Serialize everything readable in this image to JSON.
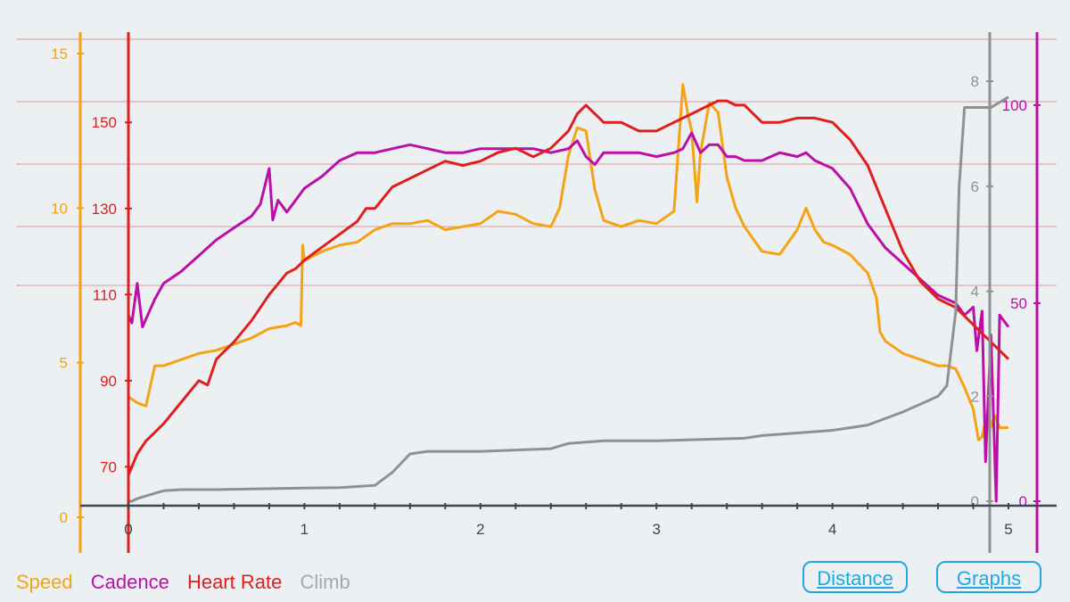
{
  "chart_data": {
    "type": "line",
    "x_axis": {
      "label": "",
      "min": 0,
      "max": 5,
      "ticks": [
        "0",
        "1",
        "2",
        "3",
        "4",
        "5"
      ]
    },
    "axes": {
      "speed": {
        "side": "left",
        "min": 0,
        "max": 15,
        "ticks": [
          "0",
          "5",
          "10",
          "15"
        ],
        "tick_values": [
          0,
          5,
          10,
          15
        ]
      },
      "heart_rate": {
        "side": "left",
        "min": 62,
        "max": 166,
        "ticks": [
          "70",
          "90",
          "110",
          "130",
          "150"
        ],
        "tick_values": [
          70,
          90,
          110,
          130,
          150
        ]
      },
      "climb": {
        "side": "right",
        "min": 0,
        "max": 8.8,
        "ticks": [
          "0",
          "2",
          "4",
          "6",
          "8"
        ],
        "tick_values": [
          0,
          2,
          4,
          6,
          8
        ]
      },
      "cadence": {
        "side": "right",
        "min": 0,
        "max": 111,
        "ticks": [
          "0",
          "50",
          "100"
        ],
        "tick_values": [
          0,
          50,
          100
        ]
      }
    },
    "grid": {
      "horizontal": true,
      "color": "#d99a96"
    },
    "legend_placement": "bottom-left",
    "series": [
      {
        "name": "Speed",
        "axis": "speed",
        "color": "#f5a316",
        "x": [
          0,
          0.05,
          0.1,
          0.15,
          0.2,
          0.3,
          0.4,
          0.5,
          0.6,
          0.7,
          0.8,
          0.9,
          0.95,
          0.98,
          0.99,
          1.0,
          1.1,
          1.2,
          1.3,
          1.4,
          1.5,
          1.6,
          1.7,
          1.8,
          1.9,
          2.0,
          2.1,
          2.2,
          2.3,
          2.4,
          2.45,
          2.5,
          2.55,
          2.6,
          2.65,
          2.7,
          2.8,
          2.9,
          3.0,
          3.1,
          3.15,
          3.18,
          3.2,
          3.23,
          3.25,
          3.3,
          3.35,
          3.4,
          3.45,
          3.5,
          3.6,
          3.7,
          3.8,
          3.85,
          3.9,
          3.95,
          4.0,
          4.1,
          4.2,
          4.25,
          4.27,
          4.3,
          4.4,
          4.5,
          4.6,
          4.65,
          4.7,
          4.75,
          4.8,
          4.83,
          4.85,
          4.88,
          4.9,
          4.92,
          4.95,
          5.0
        ],
        "values": [
          3.9,
          3.7,
          3.6,
          4.9,
          4.9,
          5.1,
          5.3,
          5.4,
          5.6,
          5.8,
          6.1,
          6.2,
          6.3,
          6.2,
          8.8,
          8.3,
          8.6,
          8.8,
          8.9,
          9.3,
          9.5,
          9.5,
          9.6,
          9.3,
          9.4,
          9.5,
          9.9,
          9.8,
          9.5,
          9.4,
          10.0,
          11.7,
          12.6,
          12.5,
          10.6,
          9.6,
          9.4,
          9.6,
          9.5,
          9.9,
          14.0,
          13.0,
          12.5,
          10.2,
          11.8,
          13.4,
          13.1,
          11.0,
          10.0,
          9.4,
          8.6,
          8.5,
          9.3,
          10.0,
          9.3,
          8.9,
          8.8,
          8.5,
          7.9,
          7.1,
          6.0,
          5.7,
          5.3,
          5.1,
          4.9,
          4.9,
          4.8,
          4.2,
          3.5,
          2.5,
          2.6,
          3.4,
          2.9,
          3.3,
          2.9,
          2.9
        ]
      },
      {
        "name": "Cadence",
        "axis": "cadence",
        "color": "#bb0fa8",
        "x": [
          0,
          0.02,
          0.05,
          0.08,
          0.1,
          0.15,
          0.2,
          0.3,
          0.4,
          0.5,
          0.6,
          0.7,
          0.75,
          0.8,
          0.82,
          0.85,
          0.9,
          1.0,
          1.1,
          1.2,
          1.3,
          1.4,
          1.5,
          1.6,
          1.7,
          1.8,
          1.9,
          2.0,
          2.1,
          2.2,
          2.3,
          2.4,
          2.5,
          2.55,
          2.6,
          2.65,
          2.7,
          2.8,
          2.9,
          3.0,
          3.1,
          3.15,
          3.2,
          3.25,
          3.3,
          3.35,
          3.4,
          3.45,
          3.5,
          3.6,
          3.7,
          3.8,
          3.85,
          3.9,
          4.0,
          4.1,
          4.2,
          4.3,
          4.4,
          4.5,
          4.6,
          4.7,
          4.75,
          4.8,
          4.82,
          4.85,
          4.87,
          4.9,
          4.93,
          4.95,
          5.0
        ],
        "values": [
          47,
          45,
          55,
          44,
          46,
          51,
          55,
          58,
          62,
          66,
          69,
          72,
          75,
          84,
          71,
          76,
          73,
          79,
          82,
          86,
          88,
          88,
          89,
          90,
          89,
          88,
          88,
          89,
          89,
          89,
          89,
          88,
          89,
          91,
          87,
          85,
          88,
          88,
          88,
          87,
          88,
          89,
          93,
          88,
          90,
          90,
          87,
          87,
          86,
          86,
          88,
          87,
          88,
          86,
          84,
          79,
          70,
          64,
          60,
          56,
          52,
          50,
          47,
          49,
          38,
          48,
          10,
          42,
          0,
          47,
          44
        ]
      },
      {
        "name": "Heart Rate",
        "axis": "heart_rate",
        "color": "#e01e1e",
        "x": [
          0,
          0.02,
          0.05,
          0.1,
          0.15,
          0.2,
          0.3,
          0.4,
          0.45,
          0.5,
          0.6,
          0.7,
          0.8,
          0.9,
          0.95,
          1.0,
          1.1,
          1.2,
          1.3,
          1.35,
          1.4,
          1.5,
          1.6,
          1.7,
          1.8,
          1.9,
          2.0,
          2.1,
          2.2,
          2.3,
          2.4,
          2.5,
          2.55,
          2.6,
          2.65,
          2.7,
          2.8,
          2.9,
          3.0,
          3.1,
          3.2,
          3.3,
          3.35,
          3.4,
          3.45,
          3.5,
          3.6,
          3.7,
          3.8,
          3.9,
          4.0,
          4.1,
          4.2,
          4.3,
          4.4,
          4.5,
          4.6,
          4.7,
          4.75,
          4.8,
          4.85,
          4.9,
          4.95,
          5.0
        ],
        "values": [
          68,
          70,
          73,
          76,
          78,
          80,
          85,
          90,
          89,
          95,
          99,
          104,
          110,
          115,
          116,
          118,
          121,
          124,
          127,
          130,
          130,
          135,
          137,
          139,
          141,
          140,
          141,
          143,
          144,
          142,
          144,
          148,
          152,
          154,
          152,
          150,
          150,
          148,
          148,
          150,
          152,
          154,
          155,
          155,
          154,
          154,
          150,
          150,
          151,
          151,
          150,
          146,
          140,
          130,
          120,
          113,
          109,
          107,
          105,
          103,
          101,
          99,
          97,
          95
        ]
      },
      {
        "name": "Climb",
        "axis": "climb",
        "color": "#919191",
        "x": [
          0,
          0.02,
          0.05,
          0.1,
          0.15,
          0.2,
          0.3,
          0.5,
          1.0,
          1.2,
          1.3,
          1.4,
          1.5,
          1.6,
          1.7,
          2.0,
          2.4,
          2.5,
          2.7,
          3.0,
          3.5,
          3.6,
          3.8,
          4.0,
          4.2,
          4.4,
          4.5,
          4.6,
          4.65,
          4.7,
          4.72,
          4.75,
          4.9,
          5.0
        ],
        "values": [
          0,
          0,
          0.05,
          0.1,
          0.15,
          0.2,
          0.22,
          0.22,
          0.25,
          0.26,
          0.28,
          0.3,
          0.55,
          0.9,
          0.95,
          0.95,
          1.0,
          1.1,
          1.15,
          1.15,
          1.2,
          1.25,
          1.3,
          1.35,
          1.45,
          1.7,
          1.85,
          2.0,
          2.2,
          3.6,
          6.0,
          7.5,
          7.5,
          7.7
        ]
      }
    ]
  },
  "legend": [
    {
      "label": "Speed",
      "color": "#f5a316"
    },
    {
      "label": "Cadence",
      "color": "#bb0fa8"
    },
    {
      "label": "Heart Rate",
      "color": "#e01e1e"
    },
    {
      "label": "Climb",
      "color": "#a8a8a8"
    }
  ],
  "buttons": {
    "distance": "Distance",
    "graphs": "Graphs"
  }
}
